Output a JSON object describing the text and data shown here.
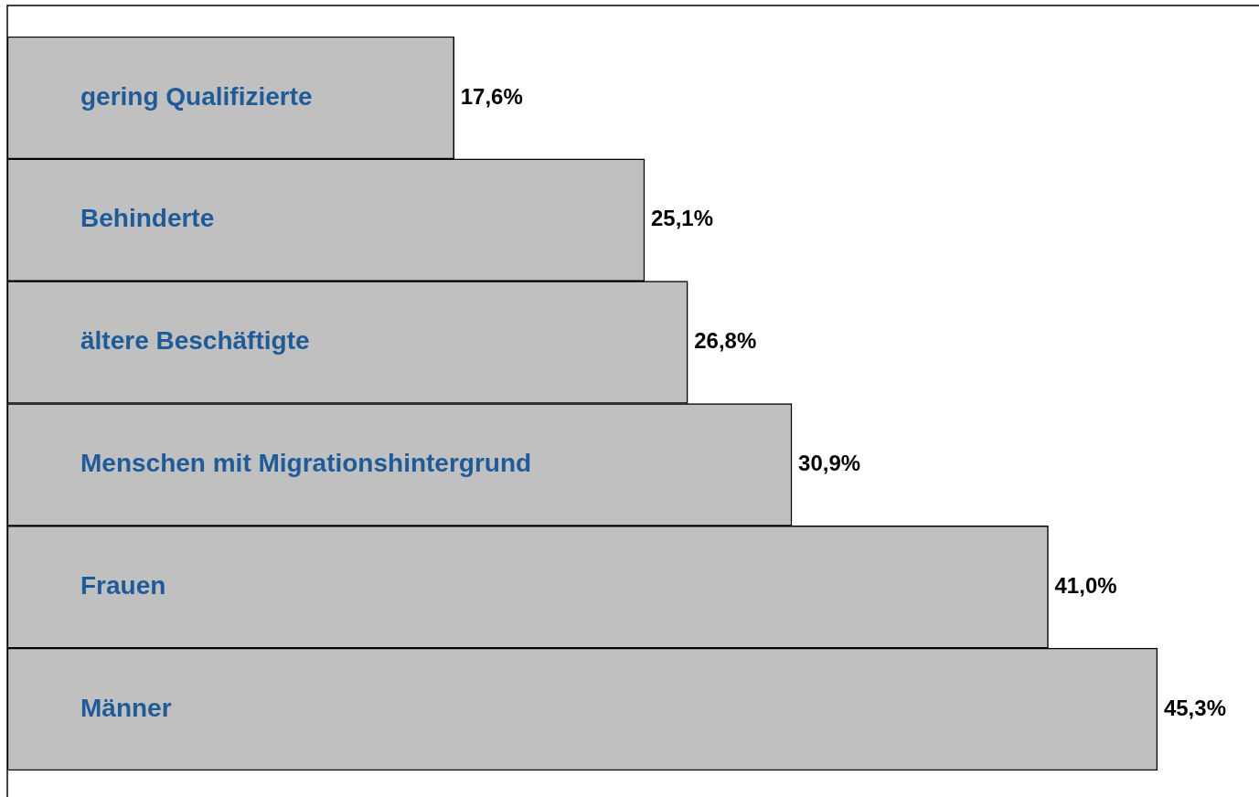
{
  "chart_data": {
    "type": "bar",
    "orientation": "horizontal",
    "categories": [
      "gering Qualifizierte",
      "Behinderte",
      "ältere Beschäftigte",
      "Menschen mit Migrationshintergrund",
      "Frauen",
      "Männer"
    ],
    "values": [
      17.6,
      25.1,
      26.8,
      30.9,
      41.0,
      45.3
    ],
    "value_labels": [
      "17,6%",
      "25,1%",
      "26,8%",
      "30,9%",
      "41,0%",
      "45,3%"
    ],
    "color": "#c0c0c0",
    "xlim": [
      0,
      49.3
    ],
    "legend": false
  }
}
